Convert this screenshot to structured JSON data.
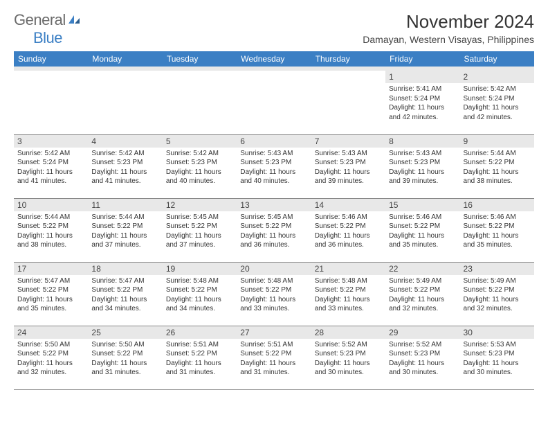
{
  "brand": {
    "name_gray": "General",
    "name_blue": "Blue"
  },
  "title": "November 2024",
  "location": "Damayan, Western Visayas, Philippines",
  "colors": {
    "header_bg": "#3b7fc4",
    "header_text": "#ffffff",
    "daynum_bg": "#e8e8e8",
    "text": "#333333"
  },
  "day_names": [
    "Sunday",
    "Monday",
    "Tuesday",
    "Wednesday",
    "Thursday",
    "Friday",
    "Saturday"
  ],
  "weeks": [
    [
      null,
      null,
      null,
      null,
      null,
      {
        "n": "1",
        "sr": "5:41 AM",
        "ss": "5:24 PM",
        "dl": "11 hours and 42 minutes."
      },
      {
        "n": "2",
        "sr": "5:42 AM",
        "ss": "5:24 PM",
        "dl": "11 hours and 42 minutes."
      }
    ],
    [
      {
        "n": "3",
        "sr": "5:42 AM",
        "ss": "5:24 PM",
        "dl": "11 hours and 41 minutes."
      },
      {
        "n": "4",
        "sr": "5:42 AM",
        "ss": "5:23 PM",
        "dl": "11 hours and 41 minutes."
      },
      {
        "n": "5",
        "sr": "5:42 AM",
        "ss": "5:23 PM",
        "dl": "11 hours and 40 minutes."
      },
      {
        "n": "6",
        "sr": "5:43 AM",
        "ss": "5:23 PM",
        "dl": "11 hours and 40 minutes."
      },
      {
        "n": "7",
        "sr": "5:43 AM",
        "ss": "5:23 PM",
        "dl": "11 hours and 39 minutes."
      },
      {
        "n": "8",
        "sr": "5:43 AM",
        "ss": "5:23 PM",
        "dl": "11 hours and 39 minutes."
      },
      {
        "n": "9",
        "sr": "5:44 AM",
        "ss": "5:22 PM",
        "dl": "11 hours and 38 minutes."
      }
    ],
    [
      {
        "n": "10",
        "sr": "5:44 AM",
        "ss": "5:22 PM",
        "dl": "11 hours and 38 minutes."
      },
      {
        "n": "11",
        "sr": "5:44 AM",
        "ss": "5:22 PM",
        "dl": "11 hours and 37 minutes."
      },
      {
        "n": "12",
        "sr": "5:45 AM",
        "ss": "5:22 PM",
        "dl": "11 hours and 37 minutes."
      },
      {
        "n": "13",
        "sr": "5:45 AM",
        "ss": "5:22 PM",
        "dl": "11 hours and 36 minutes."
      },
      {
        "n": "14",
        "sr": "5:46 AM",
        "ss": "5:22 PM",
        "dl": "11 hours and 36 minutes."
      },
      {
        "n": "15",
        "sr": "5:46 AM",
        "ss": "5:22 PM",
        "dl": "11 hours and 35 minutes."
      },
      {
        "n": "16",
        "sr": "5:46 AM",
        "ss": "5:22 PM",
        "dl": "11 hours and 35 minutes."
      }
    ],
    [
      {
        "n": "17",
        "sr": "5:47 AM",
        "ss": "5:22 PM",
        "dl": "11 hours and 35 minutes."
      },
      {
        "n": "18",
        "sr": "5:47 AM",
        "ss": "5:22 PM",
        "dl": "11 hours and 34 minutes."
      },
      {
        "n": "19",
        "sr": "5:48 AM",
        "ss": "5:22 PM",
        "dl": "11 hours and 34 minutes."
      },
      {
        "n": "20",
        "sr": "5:48 AM",
        "ss": "5:22 PM",
        "dl": "11 hours and 33 minutes."
      },
      {
        "n": "21",
        "sr": "5:48 AM",
        "ss": "5:22 PM",
        "dl": "11 hours and 33 minutes."
      },
      {
        "n": "22",
        "sr": "5:49 AM",
        "ss": "5:22 PM",
        "dl": "11 hours and 32 minutes."
      },
      {
        "n": "23",
        "sr": "5:49 AM",
        "ss": "5:22 PM",
        "dl": "11 hours and 32 minutes."
      }
    ],
    [
      {
        "n": "24",
        "sr": "5:50 AM",
        "ss": "5:22 PM",
        "dl": "11 hours and 32 minutes."
      },
      {
        "n": "25",
        "sr": "5:50 AM",
        "ss": "5:22 PM",
        "dl": "11 hours and 31 minutes."
      },
      {
        "n": "26",
        "sr": "5:51 AM",
        "ss": "5:22 PM",
        "dl": "11 hours and 31 minutes."
      },
      {
        "n": "27",
        "sr": "5:51 AM",
        "ss": "5:22 PM",
        "dl": "11 hours and 31 minutes."
      },
      {
        "n": "28",
        "sr": "5:52 AM",
        "ss": "5:23 PM",
        "dl": "11 hours and 30 minutes."
      },
      {
        "n": "29",
        "sr": "5:52 AM",
        "ss": "5:23 PM",
        "dl": "11 hours and 30 minutes."
      },
      {
        "n": "30",
        "sr": "5:53 AM",
        "ss": "5:23 PM",
        "dl": "11 hours and 30 minutes."
      }
    ]
  ],
  "labels": {
    "sunrise": "Sunrise:",
    "sunset": "Sunset:",
    "daylight": "Daylight:"
  }
}
